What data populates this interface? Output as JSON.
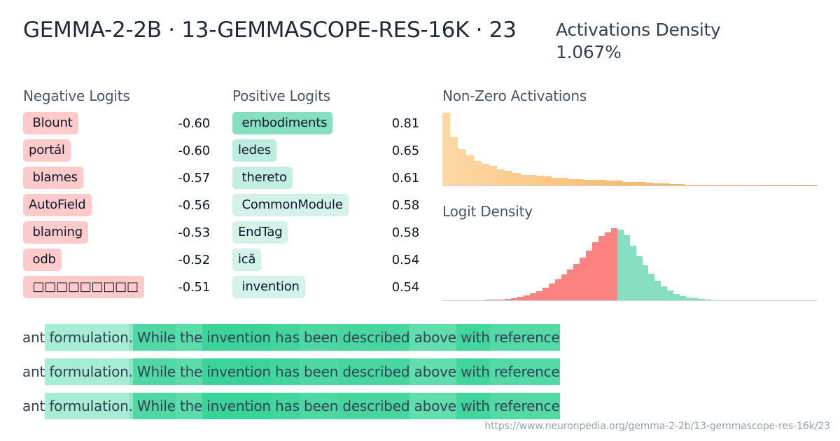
{
  "header": {
    "title": "GEMMA-2-2B · 13-GEMMASCOPE-RES-16K · 23",
    "density_label": "Activations Density",
    "density_value": "1.067%"
  },
  "negative_logits": {
    "label": "Negative Logits",
    "color": "#fecaca",
    "items": [
      {
        "token": " Blount",
        "value": "-0.60"
      },
      {
        "token": "portál",
        "value": "-0.60"
      },
      {
        "token": " blames",
        "value": "-0.57"
      },
      {
        "token": "AutoField",
        "value": "-0.56"
      },
      {
        "token": " blaming",
        "value": "-0.53"
      },
      {
        "token": " odb",
        "value": "-0.52"
      },
      {
        "token": " □□□□□□□□□",
        "value": "-0.51"
      }
    ]
  },
  "positive_logits": {
    "label": "Positive Logits",
    "items": [
      {
        "token": " embodiments",
        "value": "0.81",
        "color": "#86dfc0"
      },
      {
        "token": "ledes",
        "value": "0.65",
        "color": "#bcece0"
      },
      {
        "token": " thereto",
        "value": "0.61",
        "color": "#c4eee2"
      },
      {
        "token": " CommonModule",
        "value": "0.58",
        "color": "#d3f3ea"
      },
      {
        "token": "EndTag",
        "value": "0.58",
        "color": "#d3f3ea"
      },
      {
        "token": "ică",
        "value": "0.54",
        "color": "#d3f3ea"
      },
      {
        "token": " invention",
        "value": "0.54",
        "color": "#d3f3ea"
      }
    ]
  },
  "chart_data": [
    {
      "type": "bar",
      "title": "Non-Zero Activations",
      "xlabel": "",
      "ylabel": "",
      "color_start": "#fed7a5",
      "color_end": "#f59e36",
      "values": [
        104,
        69,
        52,
        43,
        35,
        31,
        28,
        23,
        21,
        18,
        15,
        15,
        14,
        13,
        11,
        11,
        9,
        9,
        8,
        8,
        8,
        7,
        7,
        5,
        5,
        5,
        4,
        3,
        3,
        2,
        2,
        1,
        1,
        1,
        1,
        1,
        1,
        1,
        1,
        1,
        1,
        1,
        1,
        1,
        1,
        1,
        1,
        1
      ],
      "grid": false
    },
    {
      "type": "bar",
      "title": "Logit Density",
      "xlabel": "",
      "ylabel": "",
      "negative_color": "#fc8181",
      "positive_color": "#86dfc0",
      "negative_values": [
        0,
        0,
        0,
        0,
        0,
        0,
        0,
        1,
        1,
        1,
        2,
        3,
        5,
        7,
        10,
        13,
        18,
        24,
        30,
        37,
        44,
        52,
        61,
        71,
        83,
        92,
        97,
        103
      ],
      "positive_values": [
        101,
        93,
        78,
        63,
        50,
        38,
        28,
        20,
        14,
        9,
        6,
        4,
        3,
        2,
        1,
        0,
        0,
        0,
        0,
        0,
        0,
        0,
        0,
        0,
        0,
        0,
        0,
        0,
        0,
        0,
        0,
        0
      ],
      "grid": false
    }
  ],
  "activation_examples": [
    {
      "tokens": [
        {
          "text": "ant",
          "bg": "transparent"
        },
        {
          "text": " formulation",
          "bg": "#a7ecd4"
        },
        {
          "text": ".",
          "bg": "#92e5c8"
        },
        {
          "text": " While",
          "bg": "#4fd8a4"
        },
        {
          "text": " the",
          "bg": "#5cdbab"
        },
        {
          "text": " invention",
          "bg": "#3ad49a"
        },
        {
          "text": " has",
          "bg": "#43d59e"
        },
        {
          "text": " been",
          "bg": "#4dd8a3"
        },
        {
          "text": " described",
          "bg": "#47d6a0"
        },
        {
          "text": " above",
          "bg": "#62ddae"
        },
        {
          "text": " with",
          "bg": "#43d59e"
        },
        {
          "text": " reference",
          "bg": "#52d9a6"
        }
      ]
    },
    {
      "tokens": [
        {
          "text": "ant",
          "bg": "transparent"
        },
        {
          "text": " formulation",
          "bg": "#a7ecd4"
        },
        {
          "text": ".",
          "bg": "#92e5c8"
        },
        {
          "text": " While",
          "bg": "#4fd8a4"
        },
        {
          "text": " the",
          "bg": "#5cdbab"
        },
        {
          "text": " invention",
          "bg": "#3ad49a"
        },
        {
          "text": " has",
          "bg": "#43d59e"
        },
        {
          "text": " been",
          "bg": "#4dd8a3"
        },
        {
          "text": " described",
          "bg": "#47d6a0"
        },
        {
          "text": " above",
          "bg": "#62ddae"
        },
        {
          "text": " with",
          "bg": "#43d59e"
        },
        {
          "text": " reference",
          "bg": "#52d9a6"
        }
      ]
    },
    {
      "tokens": [
        {
          "text": "ant",
          "bg": "transparent"
        },
        {
          "text": " formulation",
          "bg": "#a7ecd4"
        },
        {
          "text": ".",
          "bg": "#92e5c8"
        },
        {
          "text": " While",
          "bg": "#4fd8a4"
        },
        {
          "text": " the",
          "bg": "#5cdbab"
        },
        {
          "text": " invention",
          "bg": "#3ad49a"
        },
        {
          "text": " has",
          "bg": "#43d59e"
        },
        {
          "text": " been",
          "bg": "#4dd8a3"
        },
        {
          "text": " described",
          "bg": "#47d6a0"
        },
        {
          "text": " above",
          "bg": "#62ddae"
        },
        {
          "text": " with",
          "bg": "#43d59e"
        },
        {
          "text": " reference",
          "bg": "#52d9a6"
        }
      ]
    }
  ],
  "footer": {
    "url": "https://www.neuronpedia.org/gemma-2-2b/13-gemmascope-res-16k/23"
  }
}
